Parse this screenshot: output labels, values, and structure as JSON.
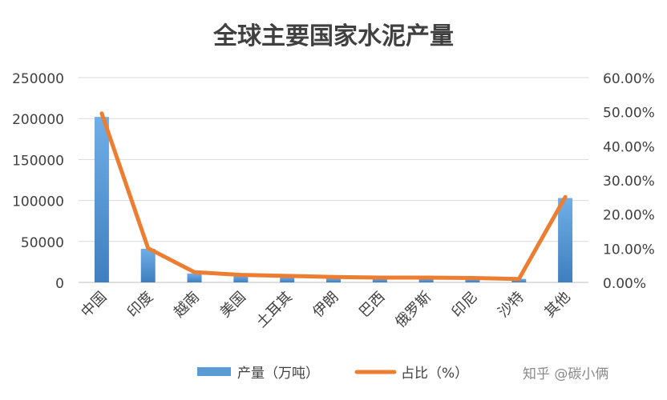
{
  "chart_data": {
    "type": "bar+line",
    "title": "全球主要国家水泥产量",
    "categories": [
      "中国",
      "印度",
      "越南",
      "美国",
      "土耳其",
      "伊朗",
      "巴西",
      "俄罗斯",
      "印尼",
      "沙特",
      "其他"
    ],
    "series": [
      {
        "name": "产量（万吨）",
        "type": "bar",
        "axis": "left",
        "color": "#5b9bd5",
        "values": [
          202000,
          41000,
          11000,
          8800,
          7100,
          5400,
          5300,
          5100,
          5000,
          4300,
          103000
        ]
      },
      {
        "name": "占比（%）",
        "type": "line",
        "axis": "right",
        "color": "#ed7d31",
        "values": [
          49.5,
          10.0,
          3.0,
          2.2,
          1.9,
          1.6,
          1.4,
          1.4,
          1.3,
          1.0,
          25.0
        ]
      }
    ],
    "y_left": {
      "min": 0,
      "max": 250000,
      "ticks": [
        "0",
        "50000",
        "100000",
        "150000",
        "200000",
        "250000"
      ]
    },
    "y_right": {
      "min": 0,
      "max": 60,
      "ticks": [
        "0.00%",
        "10.00%",
        "20.00%",
        "30.00%",
        "40.00%",
        "50.00%",
        "60.00%"
      ]
    },
    "grid": true,
    "legend_position": "bottom"
  },
  "watermark": "知乎 @碳小俩"
}
